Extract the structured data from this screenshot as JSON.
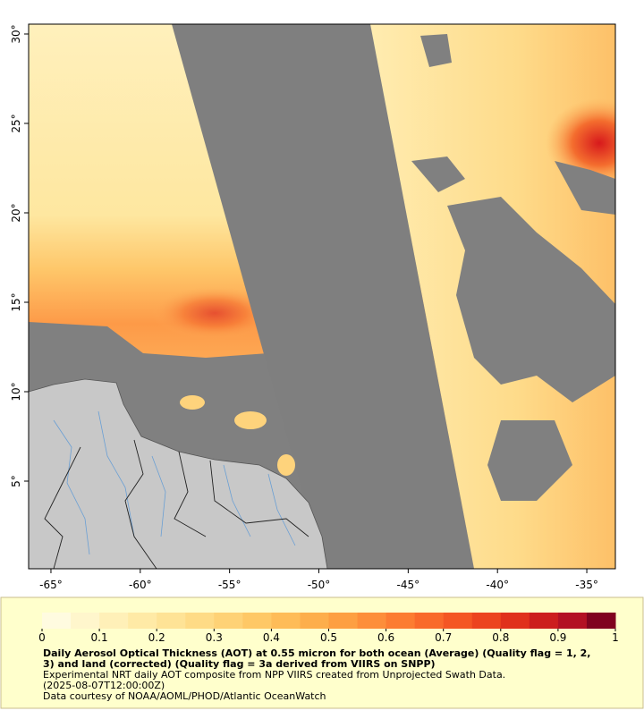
{
  "map": {
    "xlim": [
      -66.25,
      -33.4
    ],
    "ylim": [
      0.1,
      30.55
    ],
    "xticks": [
      {
        "value": -65,
        "label": "-65°"
      },
      {
        "value": -60,
        "label": "-60°"
      },
      {
        "value": -55,
        "label": "-55°"
      },
      {
        "value": -50,
        "label": "-50°"
      },
      {
        "value": -45,
        "label": "-45°"
      },
      {
        "value": -40,
        "label": "-40°"
      },
      {
        "value": -35,
        "label": "-35°"
      }
    ],
    "yticks": [
      {
        "value": 5,
        "label": "5°"
      },
      {
        "value": 10,
        "label": "10°"
      },
      {
        "value": 15,
        "label": "15°"
      },
      {
        "value": 20,
        "label": "20°"
      },
      {
        "value": 25,
        "label": "25°"
      },
      {
        "value": 30,
        "label": "30°"
      }
    ]
  },
  "colorbar": {
    "clim": [
      0,
      1
    ],
    "ticks": [
      0,
      0.1,
      0.2,
      0.3,
      0.4,
      0.5,
      0.6,
      0.7,
      0.8,
      0.9,
      1
    ],
    "colors": [
      "#fffbe0",
      "#fff6cc",
      "#fff0b8",
      "#ffeaa6",
      "#fee396",
      "#fedb86",
      "#fed276",
      "#fec866",
      "#febc58",
      "#fdae4c",
      "#fd9f42",
      "#fd8e3a",
      "#fc7c32",
      "#f9692b",
      "#f45624",
      "#ec431f",
      "#e0301c",
      "#cc1d1e",
      "#b31024",
      "#80021f"
    ]
  },
  "caption": {
    "title": "Daily Aerosol Optical Thickness (AOT) at 0.55 micron for both ocean (Average) (Quality flag = 1, 2, 3) and land (corrected) (Quality flag = 3a derived from VIIRS on SNPP)",
    "lines": [
      "Experimental NRT daily AOT composite from NPP VIIRS created from Unprojected Swath Data.",
      "(2025-08-07T12:00:00Z)",
      "Data courtesy of NOAA/AOML/PHOD/Atlantic OceanWatch"
    ]
  }
}
